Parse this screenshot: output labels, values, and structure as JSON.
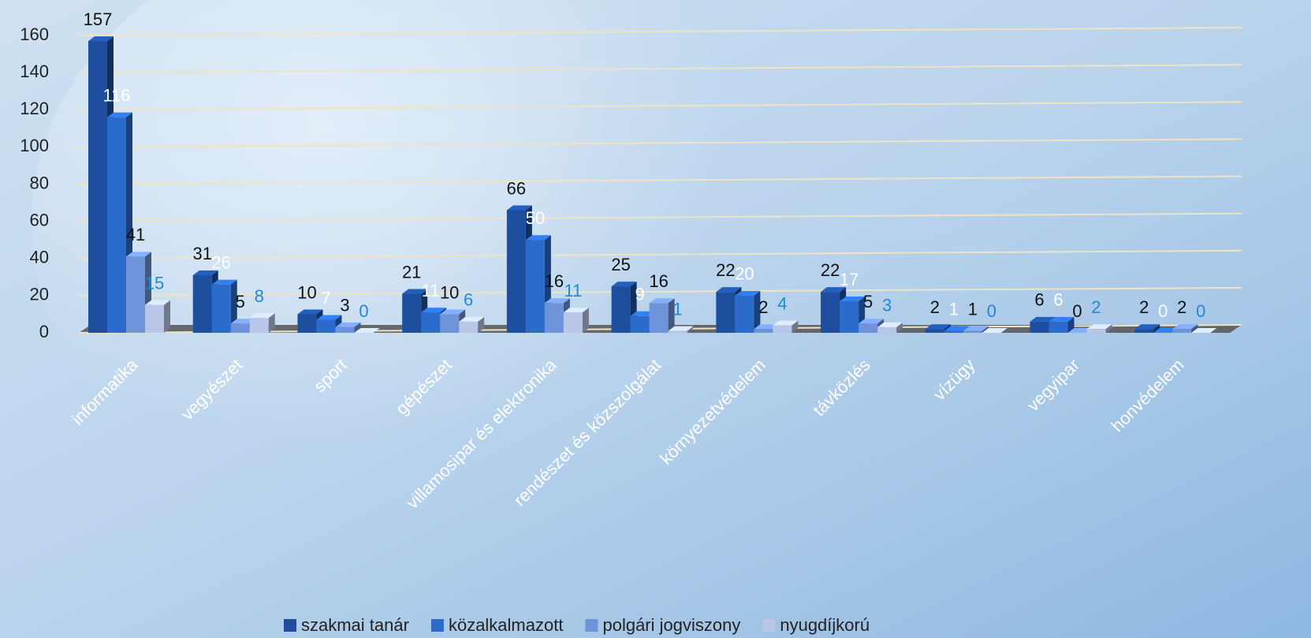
{
  "chart_data": {
    "type": "bar3d",
    "categories": [
      "informatika",
      "vegyészet",
      "sport",
      "gépészet",
      "villamosipar és elektronika",
      "rendészet és közszolgálat",
      "környezetvédelem",
      "távközlés",
      "vízügy",
      "vegyipar",
      "honvédelem"
    ],
    "series": [
      {
        "name": "szakmai tanár",
        "color": "#1d4f9e",
        "label_color": "#111111",
        "values": [
          157,
          31,
          10,
          21,
          66,
          25,
          22,
          22,
          2,
          6,
          2
        ]
      },
      {
        "name": "közalkalmazott",
        "color": "#2a6bcc",
        "label_color": "#ffffff",
        "values": [
          116,
          26,
          7,
          11,
          50,
          9,
          20,
          17,
          1,
          6,
          0
        ]
      },
      {
        "name": "polgári jogviszony",
        "color": "#6e93d9",
        "label_color": "#111111",
        "values": [
          41,
          5,
          3,
          10,
          16,
          16,
          2,
          5,
          1,
          0,
          2
        ]
      },
      {
        "name": "nyugdíjkorú",
        "color": "#b9c6e8",
        "label_color": "#1f8ad2",
        "values": [
          15,
          8,
          0,
          6,
          11,
          1,
          4,
          3,
          0,
          2,
          0
        ]
      }
    ],
    "ylim": [
      0,
      160
    ],
    "yticks": [
      0,
      20,
      40,
      60,
      80,
      100,
      120,
      140,
      160
    ],
    "grid": true,
    "legend": "bottom"
  }
}
